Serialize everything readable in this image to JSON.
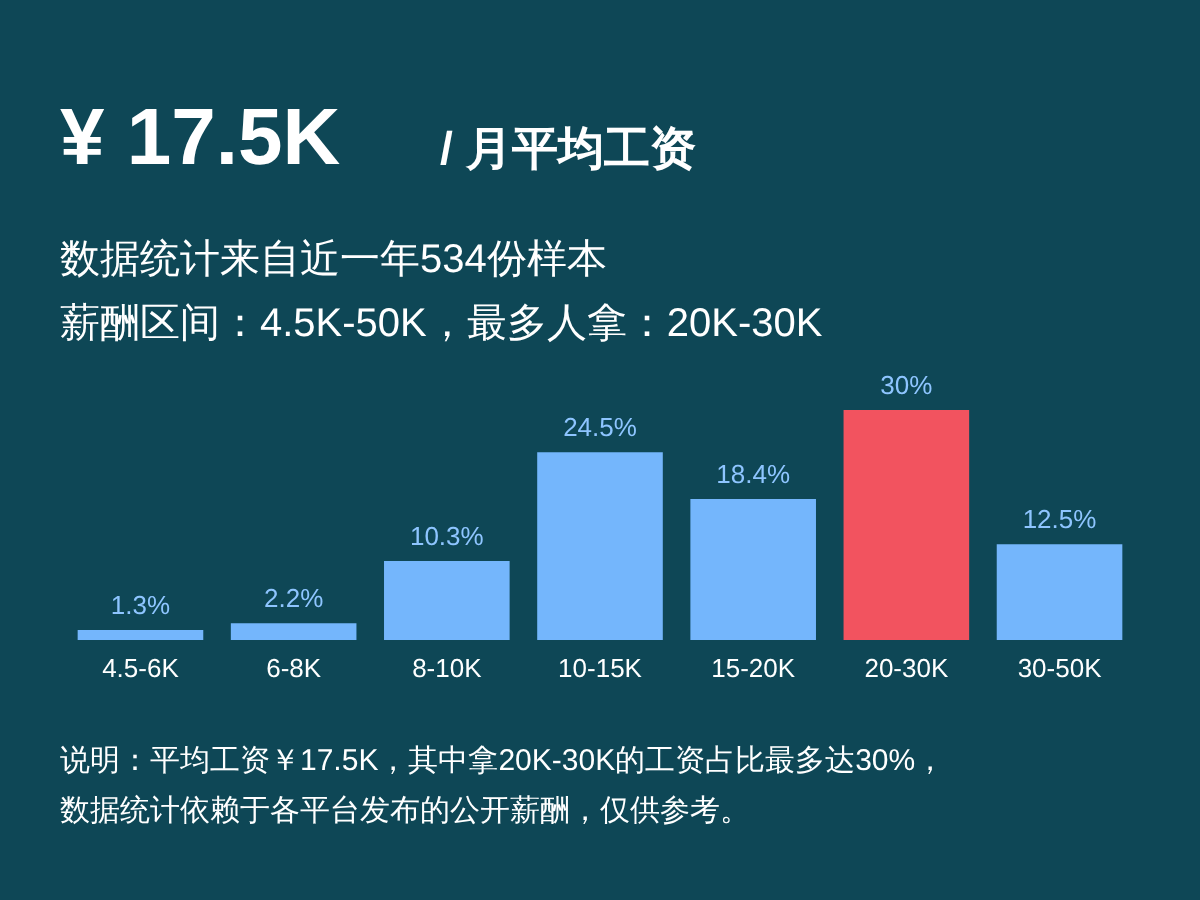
{
  "chart_data": {
    "type": "bar",
    "title": "¥ 17.5K",
    "annotations": [
      "/ 月平均工资",
      "数据统计来自近一年534份样本",
      "薪酬区间：4.5K-50K，最多人拿：20K-30K",
      "说明：平均工资￥17.5K，其中拿20K-30K的工资占比最多达30%，",
      "数据统计依赖于各平台发布的公开薪酬，仅供参考。"
    ],
    "categories": [
      "4.5-6K",
      "6-8K",
      "8-10K",
      "10-15K",
      "15-20K",
      "20-30K",
      "30-50K"
    ],
    "values": [
      1.3,
      2.2,
      10.3,
      24.5,
      18.4,
      30,
      12.5
    ],
    "value_labels": [
      "1.3%",
      "2.2%",
      "10.3%",
      "24.5%",
      "18.4%",
      "30%",
      "12.5%"
    ],
    "colors": [
      "#74b6fc",
      "#74b6fc",
      "#74b6fc",
      "#74b6fc",
      "#74b6fc",
      "#f2535f",
      "#74b6fc"
    ],
    "grid": false
  }
}
